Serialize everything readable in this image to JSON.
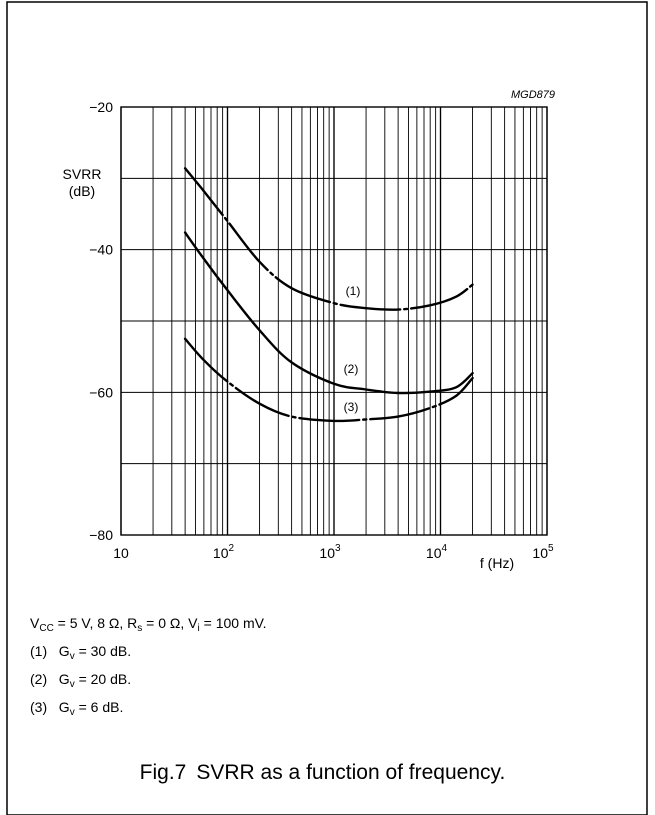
{
  "figure": {
    "code": "MGD879",
    "caption_number": "Fig.7",
    "caption_text": "SVRR as a function of frequency."
  },
  "conditions": {
    "line": {
      "v": "V",
      "vsub": "CC",
      "vrest": " = 5 V, 8 Ω, R",
      "rsub": "s",
      "rrest": " = 0 Ω, V",
      "isub": "i",
      "irest": " = 100 mV."
    },
    "items": [
      {
        "num": "(1)",
        "g": "G",
        "gsub": "v",
        "rest": " = 30 dB."
      },
      {
        "num": "(2)",
        "g": "G",
        "gsub": "v",
        "rest": " = 20 dB."
      },
      {
        "num": "(3)",
        "g": "G",
        "gsub": "v",
        "rest": " = 6 dB."
      }
    ]
  },
  "chart_data": {
    "type": "line",
    "xscale": "log",
    "xlim": [
      10,
      100000
    ],
    "ylim": [
      -80,
      -20
    ],
    "ylabel": [
      "SVRR",
      "(dB)"
    ],
    "xlabel": "f (Hz)",
    "y_ticks": [
      "−20",
      "−40",
      "−60",
      "−80"
    ],
    "x_ticks": [
      {
        "base": "10",
        "exp": ""
      },
      {
        "base": "10",
        "exp": "2"
      },
      {
        "base": "10",
        "exp": "3"
      },
      {
        "base": "10",
        "exp": "4"
      },
      {
        "base": "10",
        "exp": "5"
      }
    ],
    "grid": true,
    "series": [
      {
        "name": "(1)",
        "style": "dashed",
        "points": [
          [
            40,
            -28.6
          ],
          [
            60,
            -31.8
          ],
          [
            100,
            -36
          ],
          [
            200,
            -41.7
          ],
          [
            400,
            -45.4
          ],
          [
            1000,
            -47.5
          ],
          [
            2000,
            -48.2
          ],
          [
            4000,
            -48.4
          ],
          [
            8000,
            -47.8
          ],
          [
            14000,
            -46.6
          ],
          [
            20000,
            -44.9
          ]
        ]
      },
      {
        "name": "(2)",
        "style": "solid",
        "points": [
          [
            40,
            -37.6
          ],
          [
            60,
            -41.3
          ],
          [
            100,
            -45.7
          ],
          [
            200,
            -51.3
          ],
          [
            400,
            -55.8
          ],
          [
            1000,
            -58.8
          ],
          [
            2000,
            -59.6
          ],
          [
            4000,
            -60.1
          ],
          [
            8000,
            -59.9
          ],
          [
            14000,
            -59.3
          ],
          [
            20000,
            -57.3
          ]
        ]
      },
      {
        "name": "(3)",
        "style": "dashed",
        "points": [
          [
            40,
            -52.5
          ],
          [
            60,
            -55.5
          ],
          [
            100,
            -58.5
          ],
          [
            200,
            -61.6
          ],
          [
            400,
            -63.4
          ],
          [
            1000,
            -64
          ],
          [
            2000,
            -63.8
          ],
          [
            4000,
            -63.4
          ],
          [
            8000,
            -62.2
          ],
          [
            14000,
            -60.5
          ],
          [
            20000,
            -58.0
          ]
        ]
      }
    ],
    "annotations": [
      "(1)",
      "(2)",
      "(3)"
    ]
  }
}
